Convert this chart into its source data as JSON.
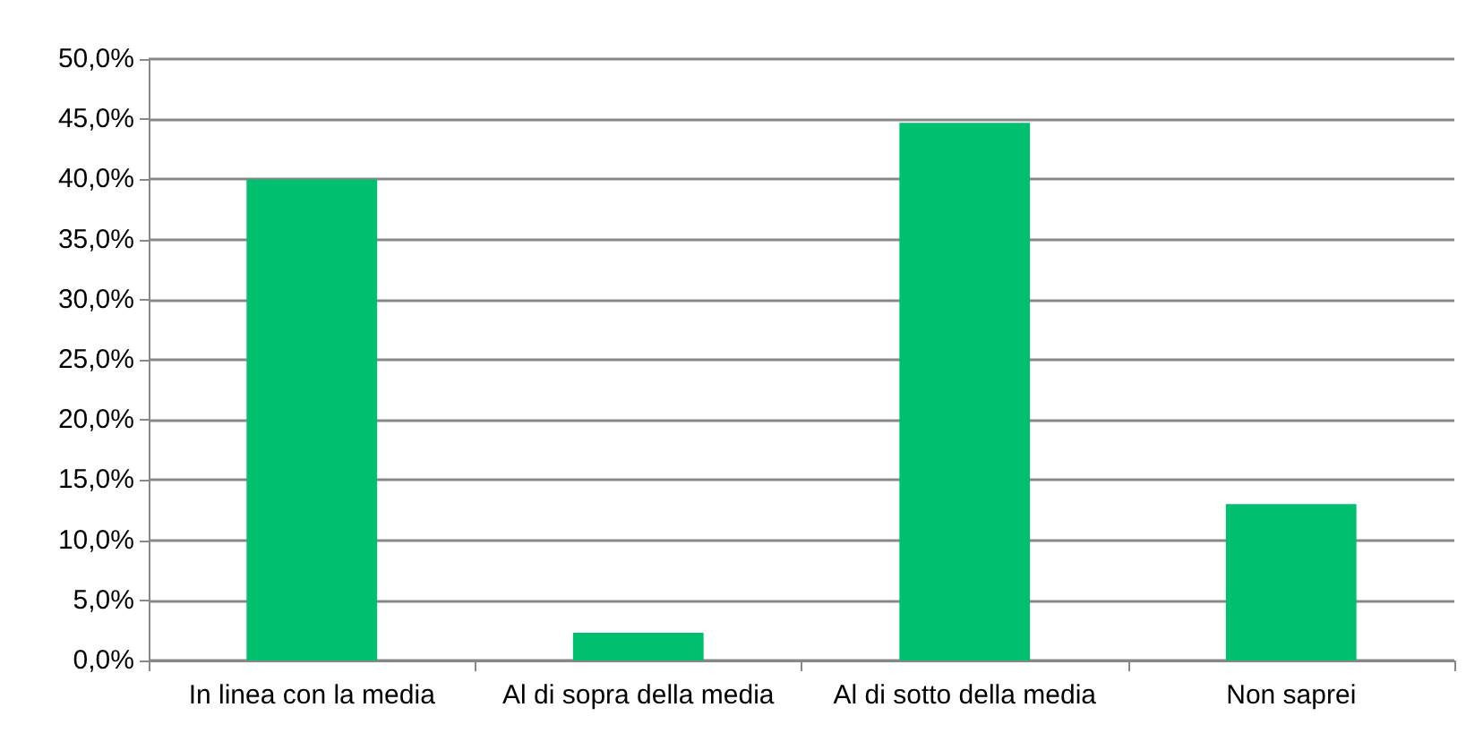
{
  "chart_data": {
    "type": "bar",
    "categories": [
      "In linea con la media",
      "Al di sopra della media",
      "Al di sotto della media",
      "Non saprei"
    ],
    "values": [
      40.0,
      2.3,
      44.7,
      13.0
    ],
    "color": "#00bf6f",
    "ylim": [
      0,
      50
    ],
    "yticks": [
      {
        "value": 0,
        "label": "0,0%"
      },
      {
        "value": 5,
        "label": "5,0%"
      },
      {
        "value": 10,
        "label": "10,0%"
      },
      {
        "value": 15,
        "label": "15,0%"
      },
      {
        "value": 20,
        "label": "20,0%"
      },
      {
        "value": 25,
        "label": "25,0%"
      },
      {
        "value": 30,
        "label": "30,0%"
      },
      {
        "value": 35,
        "label": "35,0%"
      },
      {
        "value": 40,
        "label": "40,0%"
      },
      {
        "value": 45,
        "label": "45,0%"
      },
      {
        "value": 50,
        "label": "50,0%"
      }
    ],
    "grid": "y"
  }
}
